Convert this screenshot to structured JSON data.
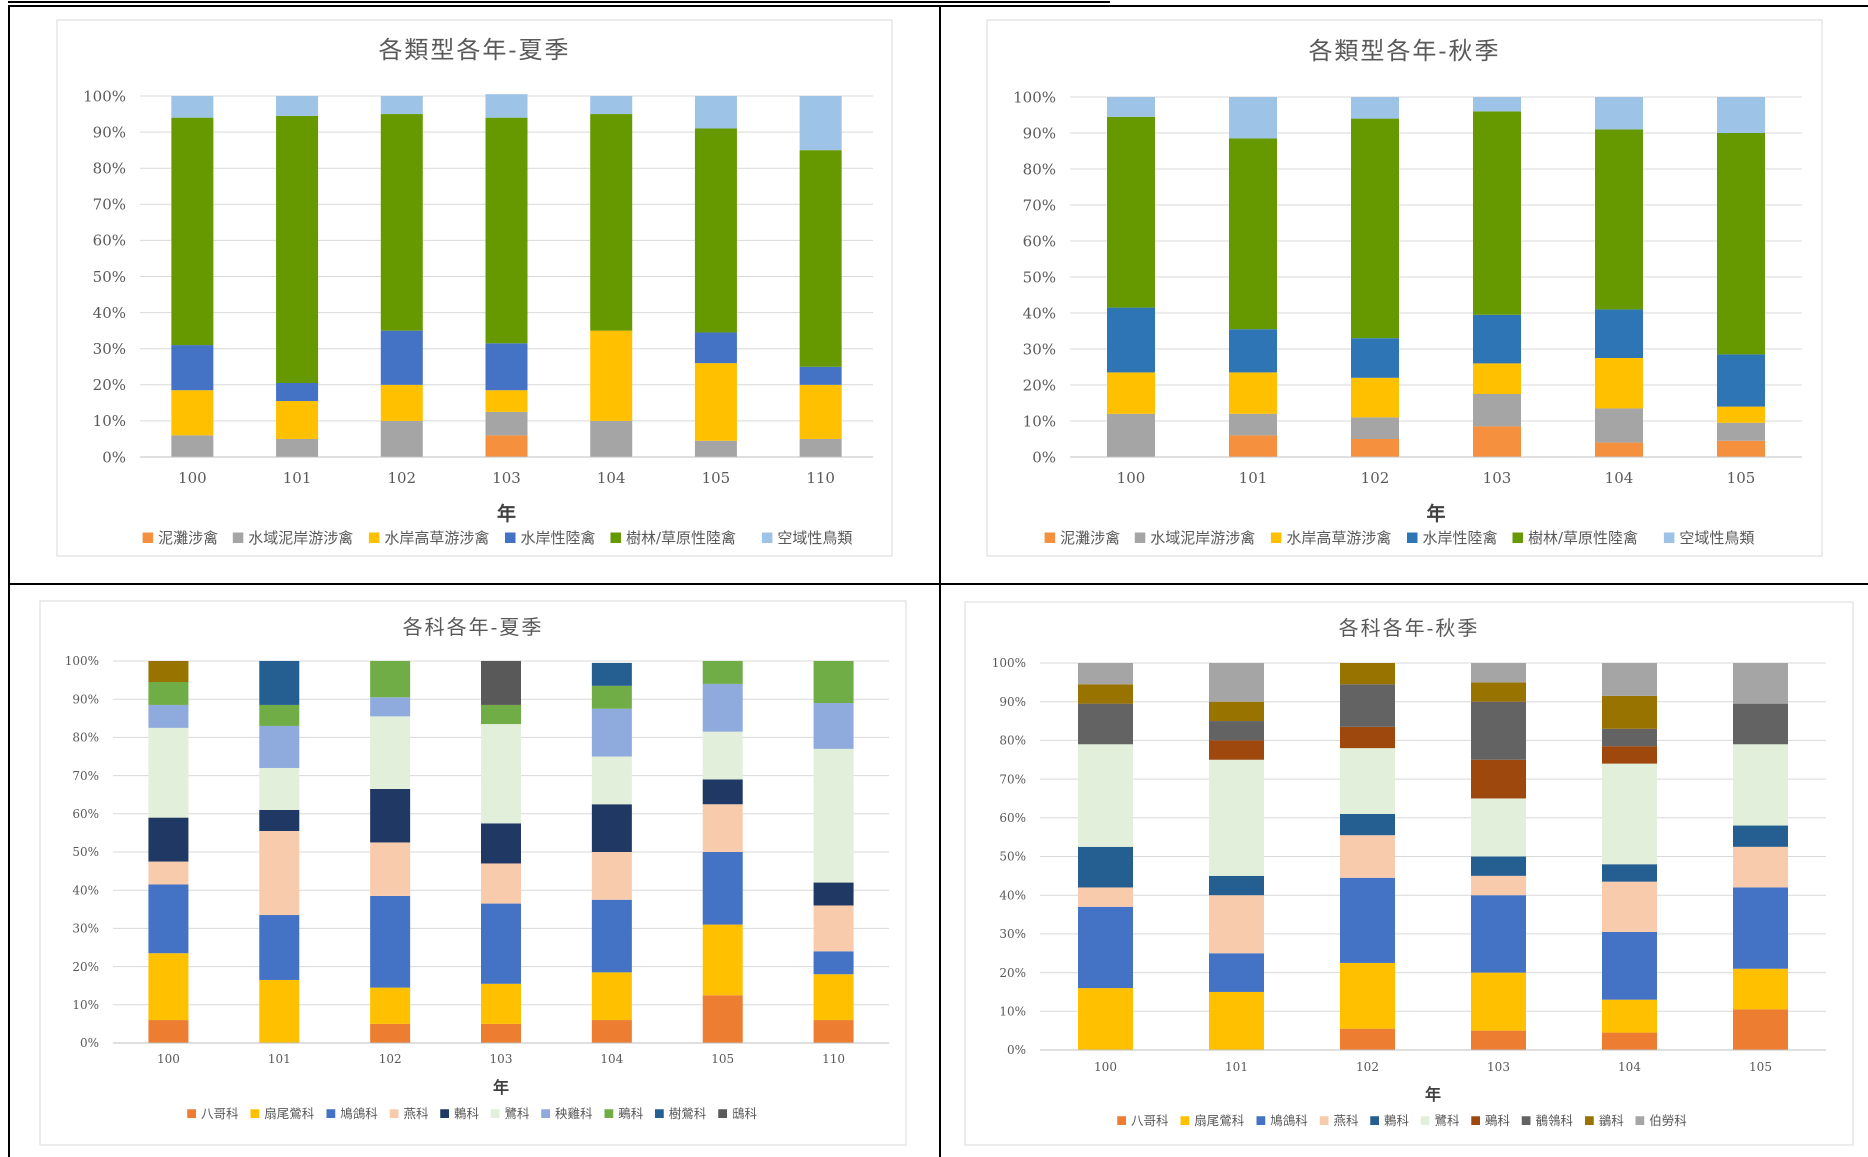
{
  "chart_data": [
    {
      "type": "bar",
      "stacked": true,
      "title": "各類型各年-夏季",
      "xlabel": "年",
      "ylabel": "",
      "ylim": [
        0,
        100
      ],
      "yticks": [
        "0%",
        "10%",
        "20%",
        "30%",
        "40%",
        "50%",
        "60%",
        "70%",
        "80%",
        "90%",
        "100%"
      ],
      "categories": [
        "100",
        "101",
        "102",
        "103",
        "104",
        "105",
        "110"
      ],
      "legend": "bottom",
      "grid": true,
      "series": [
        {
          "name": "泥灘涉禽",
          "color": "#F4903E",
          "values": [
            0,
            0,
            0,
            6,
            0,
            0,
            0
          ]
        },
        {
          "name": "水域泥岸游涉禽",
          "color": "#A5A5A5",
          "values": [
            6,
            5,
            10,
            6.5,
            10,
            4.5,
            5
          ]
        },
        {
          "name": "水岸高草游涉禽",
          "color": "#FFC000",
          "values": [
            12.5,
            10.5,
            10,
            6,
            25,
            21.5,
            15
          ]
        },
        {
          "name": "水岸性陸禽",
          "color": "#4472C4",
          "values": [
            12.5,
            5,
            15,
            13,
            0,
            8.5,
            5
          ]
        },
        {
          "name": "樹林/草原性陸禽",
          "color": "#669900",
          "values": [
            63,
            74,
            60,
            62.5,
            60,
            56.5,
            60
          ]
        },
        {
          "name": "空域性鳥類",
          "color": "#9DC3E6",
          "values": [
            6,
            5.5,
            5,
            6.5,
            5,
            9,
            15
          ]
        }
      ]
    },
    {
      "type": "bar",
      "stacked": true,
      "title": "各類型各年-秋季",
      "xlabel": "年",
      "ylabel": "",
      "ylim": [
        0,
        100
      ],
      "yticks": [
        "0%",
        "10%",
        "20%",
        "30%",
        "40%",
        "50%",
        "60%",
        "70%",
        "80%",
        "90%",
        "100%"
      ],
      "categories": [
        "100",
        "101",
        "102",
        "103",
        "104",
        "105"
      ],
      "legend": "bottom",
      "grid": true,
      "series": [
        {
          "name": "泥灘涉禽",
          "color": "#F4903E",
          "values": [
            0,
            6,
            5,
            8.5,
            4,
            4.5
          ]
        },
        {
          "name": "水域泥岸游涉禽",
          "color": "#A5A5A5",
          "values": [
            12,
            6,
            6,
            9,
            9.5,
            5
          ]
        },
        {
          "name": "水岸高草游涉禽",
          "color": "#FFC000",
          "values": [
            11.5,
            11.5,
            11,
            8.5,
            14,
            4.5
          ]
        },
        {
          "name": "水岸性陸禽",
          "color": "#2E75B6",
          "values": [
            18,
            12,
            11,
            13.5,
            13.5,
            14.5
          ]
        },
        {
          "name": "樹林/草原性陸禽",
          "color": "#669900",
          "values": [
            53,
            53,
            61,
            56.5,
            50,
            61.5
          ]
        },
        {
          "name": "空域性鳥類",
          "color": "#9DC3E6",
          "values": [
            5.5,
            11.5,
            6,
            4,
            9,
            10
          ]
        }
      ]
    },
    {
      "type": "bar",
      "stacked": true,
      "title": "各科各年-夏季",
      "xlabel": "年",
      "ylabel": "",
      "ylim": [
        0,
        100
      ],
      "yticks": [
        "0%",
        "10%",
        "20%",
        "30%",
        "40%",
        "50%",
        "60%",
        "70%",
        "80%",
        "90%",
        "100%"
      ],
      "categories": [
        "100",
        "101",
        "102",
        "103",
        "104",
        "105",
        "110"
      ],
      "legend": "bottom",
      "grid": true,
      "series": [
        {
          "name": "八哥科",
          "color": "#ED7D31",
          "values": [
            6,
            0,
            5,
            5,
            6,
            12.5,
            6
          ]
        },
        {
          "name": "扇尾鶯科",
          "color": "#FFC000",
          "values": [
            17.5,
            16.5,
            9.5,
            10.5,
            12.5,
            18.5,
            12
          ]
        },
        {
          "name": "鳩鴿科",
          "color": "#4472C4",
          "values": [
            18,
            17,
            24,
            21,
            19,
            19,
            6
          ]
        },
        {
          "name": "燕科",
          "color": "#F8CBAD",
          "values": [
            6,
            22,
            14,
            10.5,
            12.5,
            12.5,
            12
          ]
        },
        {
          "name": "鶇科",
          "color": "#203864",
          "values": [
            11.5,
            5.5,
            14,
            10.5,
            12.5,
            6.5,
            6
          ]
        },
        {
          "name": "鷺科",
          "color": "#E2EFDA",
          "values": [
            23.5,
            11,
            19,
            26,
            12.5,
            12.5,
            35
          ]
        },
        {
          "name": "秧雞科",
          "color": "#8FAADC",
          "values": [
            6,
            11,
            5,
            0,
            12.5,
            12.5,
            12
          ]
        },
        {
          "name": "鵐科",
          "color": "#70AD47",
          "values": [
            6,
            5.5,
            9.5,
            5,
            6,
            6,
            11
          ]
        },
        {
          "name": "樹鶯科",
          "color": "#255E91",
          "values": [
            0,
            11.5,
            0,
            0,
            6,
            0,
            0
          ]
        },
        {
          "name": "鴟科",
          "color": "#595959",
          "values": [
            0,
            0,
            0,
            11.5,
            0,
            0,
            0
          ]
        },
        {
          "name": "",
          "color": "#997300",
          "values": [
            5.5,
            0,
            0,
            0,
            0,
            0,
            0
          ]
        }
      ]
    },
    {
      "type": "bar",
      "stacked": true,
      "title": "各科各年-秋季",
      "xlabel": "年",
      "ylabel": "",
      "ylim": [
        0,
        100
      ],
      "yticks": [
        "0%",
        "10%",
        "20%",
        "30%",
        "40%",
        "50%",
        "60%",
        "70%",
        "80%",
        "90%",
        "100%"
      ],
      "categories": [
        "100",
        "101",
        "102",
        "103",
        "104",
        "105"
      ],
      "legend": "bottom",
      "grid": true,
      "series": [
        {
          "name": "八哥科",
          "color": "#ED7D31",
          "values": [
            0,
            0,
            5.5,
            5,
            4.5,
            10.5
          ]
        },
        {
          "name": "扇尾鶯科",
          "color": "#FFC000",
          "values": [
            16,
            15,
            17,
            15,
            8.5,
            10.5
          ]
        },
        {
          "name": "鳩鴿科",
          "color": "#4472C4",
          "values": [
            21,
            10,
            22,
            20,
            17.5,
            21
          ]
        },
        {
          "name": "燕科",
          "color": "#F8CBAD",
          "values": [
            5,
            15,
            11,
            5,
            13,
            10.5
          ]
        },
        {
          "name": "鶇科",
          "color": "#255E91",
          "values": [
            10.5,
            5,
            5.5,
            5,
            4.5,
            5.5
          ]
        },
        {
          "name": "鷺科",
          "color": "#E2EFDA",
          "values": [
            26.5,
            30,
            17,
            15,
            26,
            21
          ]
        },
        {
          "name": "鵐科",
          "color": "#9E480E",
          "values": [
            0,
            5,
            5.5,
            10,
            4.5,
            0
          ]
        },
        {
          "name": "鶺鴒科",
          "color": "#636363",
          "values": [
            10.5,
            5,
            11,
            15,
            4.5,
            10.5
          ]
        },
        {
          "name": "鶲科",
          "color": "#997300",
          "values": [
            5,
            5,
            5.5,
            5,
            8.5,
            0
          ]
        },
        {
          "name": "伯勞科",
          "color": "#A5A5A5",
          "values": [
            5.5,
            10,
            0,
            5,
            8.5,
            10.5
          ]
        }
      ]
    }
  ]
}
